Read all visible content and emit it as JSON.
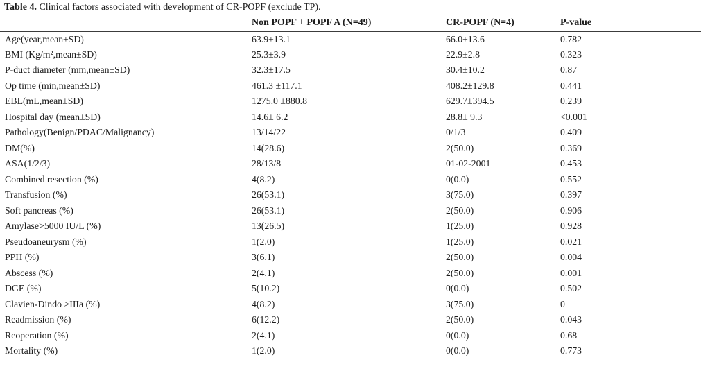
{
  "title": {
    "prefix": "Table 4.",
    "text": "Clinical factors associated with development of CR-POPF (exclude TP)."
  },
  "table": {
    "columns": [
      "",
      "Non POPF + POPF A (N=49)",
      "CR-POPF (N=4)",
      "P-value"
    ],
    "rows": [
      {
        "label": "Age(year,mean±SD)",
        "group1": "63.9±13.1",
        "group2": "66.0±13.6",
        "p": "0.782"
      },
      {
        "label": "BMI (Kg/m²,mean±SD)",
        "group1": "25.3±3.9",
        "group2": "22.9±2.8",
        "p": "0.323"
      },
      {
        "label": "P-duct diameter (mm,mean±SD)",
        "group1": "32.3±17.5",
        "group2": "30.4±10.2",
        "p": "0.87"
      },
      {
        "label": "Op time (min,mean±SD)",
        "group1": "461.3 ±117.1",
        "group2": "408.2±129.8",
        "p": "0.441"
      },
      {
        "label": "EBL(mL,mean±SD)",
        "group1": "1275.0 ±880.8",
        "group2": "629.7±394.5",
        "p": "0.239"
      },
      {
        "label": "Hospital day (mean±SD)",
        "group1": "14.6± 6.2",
        "group2": "28.8± 9.3",
        "p": "<0.001"
      },
      {
        "label": "Pathology(Benign/PDAC/Malignancy)",
        "group1": "13/14/22",
        "group2": "0/1/3",
        "p": "0.409"
      },
      {
        "label": "DM(%)",
        "group1": "14(28.6)",
        "group2": "2(50.0)",
        "p": "0.369"
      },
      {
        "label": "ASA(1/2/3)",
        "group1": "28/13/8",
        "group2": "01-02-2001",
        "p": "0.453"
      },
      {
        "label": "Combined resection (%)",
        "group1": "4(8.2)",
        "group2": "0(0.0)",
        "p": "0.552"
      },
      {
        "label": "Transfusion (%)",
        "group1": "26(53.1)",
        "group2": "3(75.0)",
        "p": "0.397"
      },
      {
        "label": "Soft pancreas (%)",
        "group1": "26(53.1)",
        "group2": "2(50.0)",
        "p": "0.906"
      },
      {
        "label": "Amylase>5000 IU/L (%)",
        "group1": "13(26.5)",
        "group2": "1(25.0)",
        "p": "0.928"
      },
      {
        "label": "Pseudoaneurysm (%)",
        "group1": "1(2.0)",
        "group2": "1(25.0)",
        "p": "0.021"
      },
      {
        "label": "PPH (%)",
        "group1": "3(6.1)",
        "group2": "2(50.0)",
        "p": "0.004"
      },
      {
        "label": "Abscess (%)",
        "group1": "2(4.1)",
        "group2": "2(50.0)",
        "p": "0.001"
      },
      {
        "label": "DGE (%)",
        "group1": "5(10.2)",
        "group2": "0(0.0)",
        "p": "0.502"
      },
      {
        "label": "Clavien-Dindo >IIIa (%)",
        "group1": "4(8.2)",
        "group2": "3(75.0)",
        "p": "0"
      },
      {
        "label": "Readmission (%)",
        "group1": "6(12.2)",
        "group2": "2(50.0)",
        "p": "0.043"
      },
      {
        "label": "Reoperation (%)",
        "group1": "2(4.1)",
        "group2": "0(0.0)",
        "p": "0.68"
      },
      {
        "label": "Mortality (%)",
        "group1": "1(2.0)",
        "group2": "0(0.0)",
        "p": "0.773"
      }
    ]
  }
}
